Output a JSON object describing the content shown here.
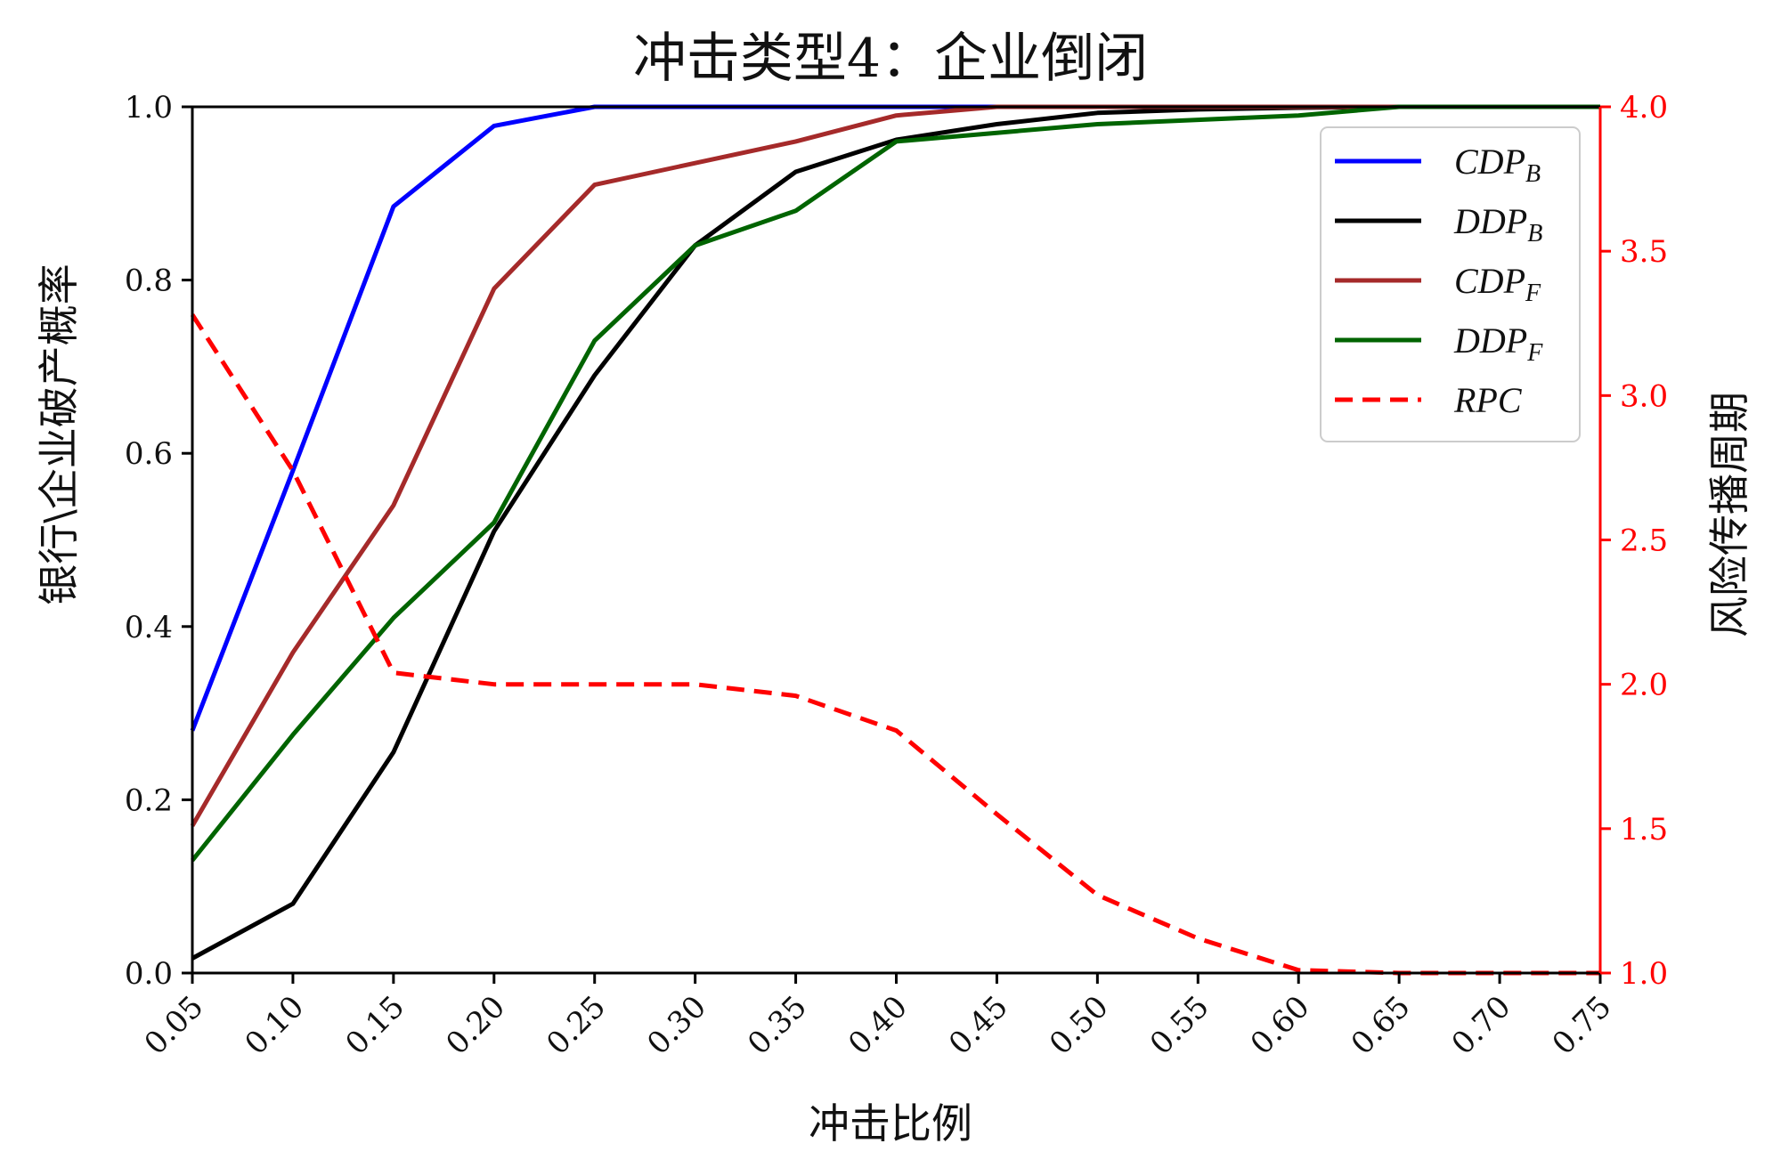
{
  "chart_data": {
    "type": "line",
    "title": "冲击类型4：企业倒闭",
    "xlabel": "冲击比例",
    "ylabel": "银行\\企业破产概率",
    "ylabel_right": "风险传播周期",
    "x": [
      0.05,
      0.1,
      0.15,
      0.2,
      0.25,
      0.3,
      0.35,
      0.4,
      0.45,
      0.5,
      0.55,
      0.6,
      0.65,
      0.7,
      0.75
    ],
    "xtick_labels": [
      "0.05",
      "0.10",
      "0.15",
      "0.20",
      "0.25",
      "0.30",
      "0.35",
      "0.40",
      "0.45",
      "0.50",
      "0.55",
      "0.60",
      "0.65",
      "0.70",
      "0.75"
    ],
    "xlim": [
      0.05,
      0.75
    ],
    "ylim": [
      0.0,
      1.0
    ],
    "yticks": [
      "0.0",
      "0.2",
      "0.4",
      "0.6",
      "0.8",
      "1.0"
    ],
    "ylim_right": [
      1.0,
      4.0
    ],
    "yticks_right": [
      "1.0",
      "1.5",
      "2.0",
      "2.5",
      "3.0",
      "3.5",
      "4.0"
    ],
    "legend_position": "top-right",
    "grid": false,
    "series": [
      {
        "name": "CDP",
        "sub": "B",
        "color": "#0000ff",
        "dash": false,
        "axis": "left",
        "values": [
          0.28,
          0.58,
          0.885,
          0.978,
          1.0,
          1.0,
          1.0,
          1.0,
          1.0,
          1.0,
          1.0,
          1.0,
          1.0,
          1.0,
          1.0
        ]
      },
      {
        "name": "DDP",
        "sub": "B",
        "color": "#000000",
        "dash": false,
        "axis": "left",
        "values": [
          0.017,
          0.08,
          0.255,
          0.51,
          0.69,
          0.84,
          0.925,
          0.962,
          0.98,
          0.993,
          0.997,
          0.999,
          1.0,
          1.0,
          1.0
        ]
      },
      {
        "name": "CDP",
        "sub": "F",
        "color": "#a52a2a",
        "dash": false,
        "axis": "left",
        "values": [
          0.17,
          0.37,
          0.54,
          0.79,
          0.91,
          0.935,
          0.96,
          0.99,
          1.0,
          1.0,
          1.0,
          1.0,
          1.0,
          1.0,
          1.0
        ]
      },
      {
        "name": "DDP",
        "sub": "F",
        "color": "#006400",
        "dash": false,
        "axis": "left",
        "values": [
          0.13,
          0.275,
          0.41,
          0.52,
          0.73,
          0.84,
          0.88,
          0.96,
          0.97,
          0.98,
          0.985,
          0.99,
          1.0,
          1.0,
          1.0
        ]
      },
      {
        "name": "RPC",
        "sub": "",
        "color": "#ff0000",
        "dash": true,
        "axis": "right",
        "values": [
          3.28,
          2.74,
          2.04,
          2.0,
          2.0,
          2.0,
          1.96,
          1.84,
          1.55,
          1.27,
          1.12,
          1.01,
          1.0,
          1.0,
          1.0
        ]
      }
    ]
  }
}
